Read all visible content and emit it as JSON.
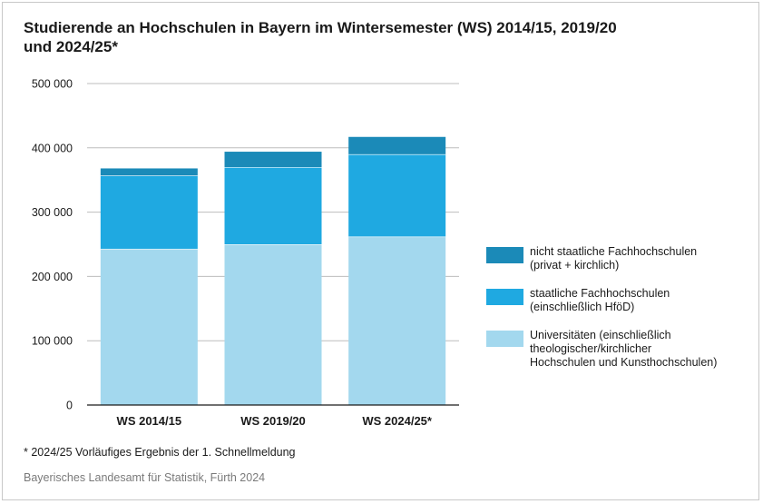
{
  "title_lines": [
    "Studierende an Hochschulen in Bayern im Wintersemester (WS) 2014/15, 2019/20",
    "und 2024/25*"
  ],
  "chart_data": {
    "type": "bar",
    "stacked": true,
    "title": "Studierende an Hochschulen in Bayern im Wintersemester (WS) 2014/15, 2019/20 und 2024/25*",
    "categories": [
      "WS 2014/15",
      "WS 2019/20",
      "WS 2024/25*"
    ],
    "series": [
      {
        "name": "Universitäten (einschließlich theologischer/kirchlicher Hochschulen und Kunsthochschulen)",
        "legend_lines": [
          "Universitäten (einschließlich",
          "theologischer/kirchlicher",
          "Hochschulen und Kunsthochschulen)"
        ],
        "color": "#a3d8ee",
        "values": [
          243000,
          250000,
          262000
        ]
      },
      {
        "name": "staatliche Fachhochschulen (einschließlich HföD)",
        "legend_lines": [
          "staatliche Fachhochschulen",
          "(einschließlich HföD)"
        ],
        "color": "#1fa9e1",
        "values": [
          114000,
          120000,
          128000
        ]
      },
      {
        "name": "nicht staatliche Fachhochschulen (privat + kirchlich)",
        "legend_lines": [
          "nicht staatliche Fachhochschulen",
          "(privat + kirchlich)"
        ],
        "color": "#1b8ab8",
        "values": [
          11000,
          24000,
          27000
        ]
      }
    ],
    "ylim": [
      0,
      500000
    ],
    "yticks": [
      0,
      100000,
      200000,
      300000,
      400000,
      500000
    ],
    "ytick_labels": [
      "0",
      "100 000",
      "200 000",
      "300 000",
      "400 000",
      "500 000"
    ],
    "grid": true,
    "legend_position": "right",
    "xlabel": "",
    "ylabel": ""
  },
  "footnote": "* 2024/25 Vorläufiges Ergebnis der 1. Schnellmeldung",
  "source": "Bayerisches Landesamt für Statistik, Fürth 2024"
}
